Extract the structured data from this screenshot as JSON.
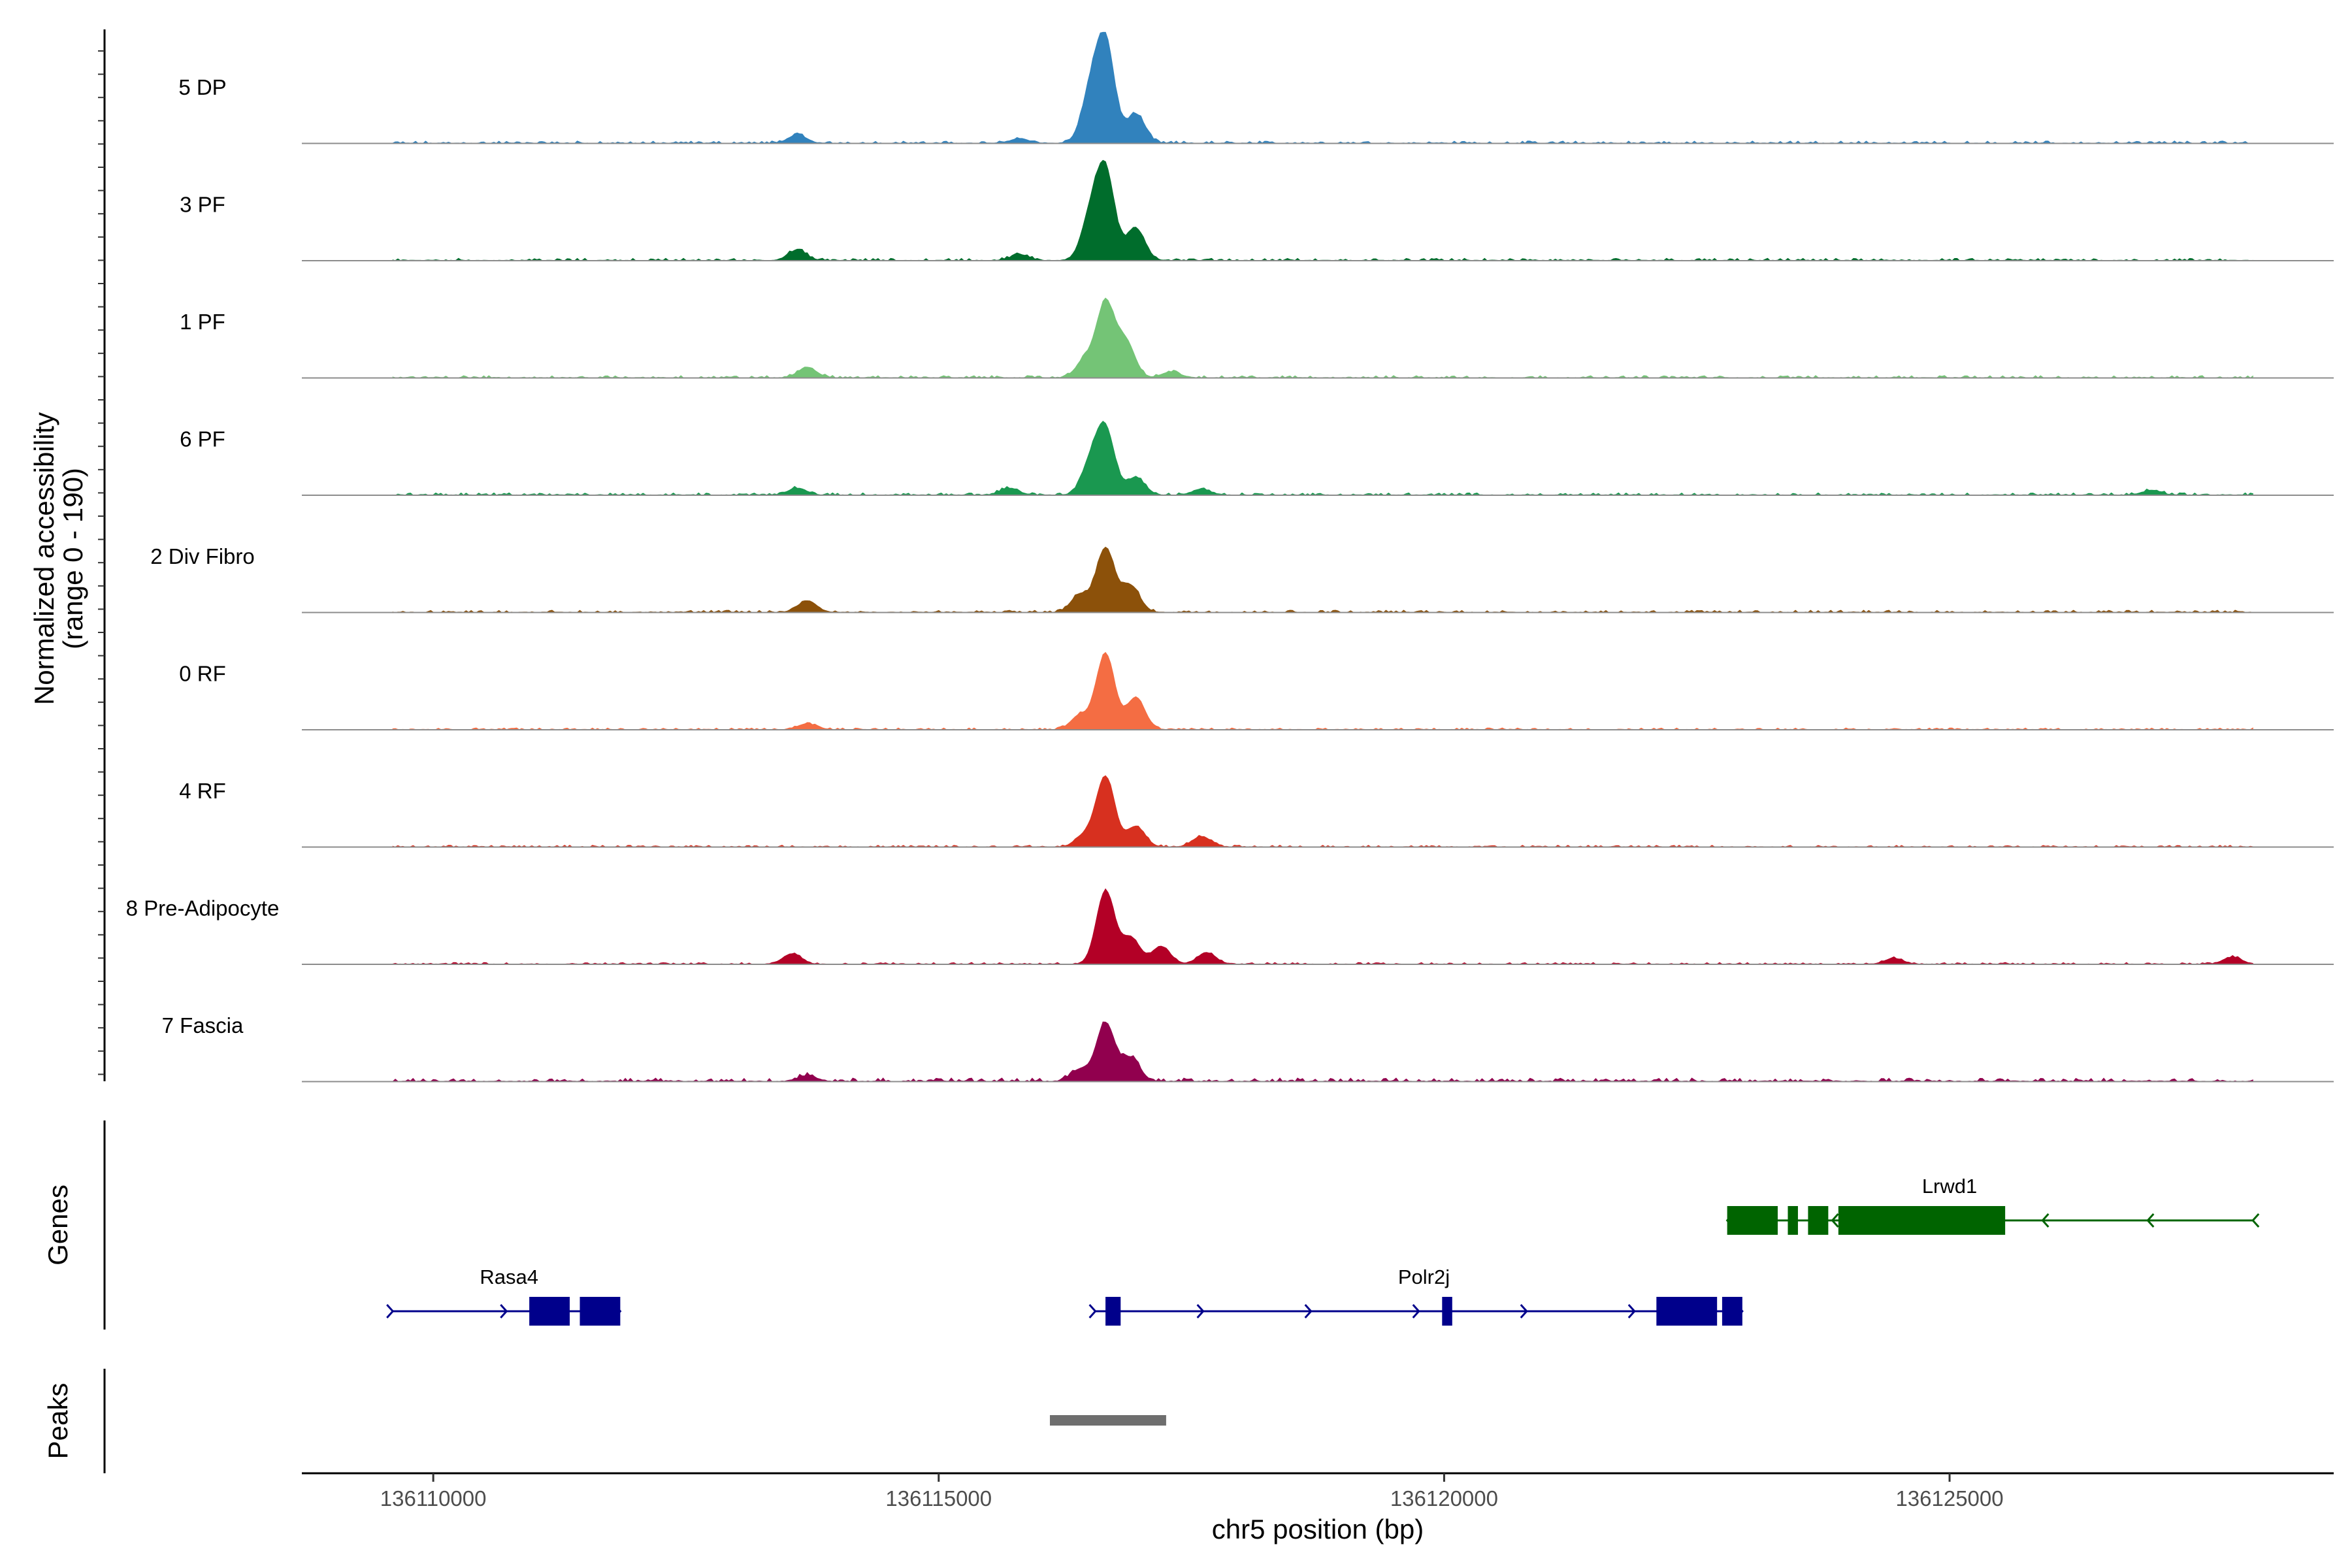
{
  "chart_data": {
    "type": "area",
    "title": "",
    "xlabel": "chr5 position (bp)",
    "ylabel_line1": "Normalized accessibility",
    "ylabel_line2": "(range 0 - 190)",
    "ylim": [
      0,
      190
    ],
    "xlim": [
      136108700,
      136128800
    ],
    "x_ticks": [
      136110000,
      136115000,
      136120000,
      136125000
    ],
    "x_tick_labels": [
      "136110000",
      "136115000",
      "136120000",
      "136125000"
    ],
    "tracks": [
      {
        "name": "5 DP",
        "color": "#3182bd",
        "peaks": [
          [
            136116650,
            170
          ],
          [
            136116500,
            80
          ],
          [
            136116950,
            50
          ],
          [
            136113600,
            14
          ],
          [
            136115800,
            8
          ]
        ],
        "baseline": 4
      },
      {
        "name": "3 PF",
        "color": "#006d2c",
        "peaks": [
          [
            136116650,
            150
          ],
          [
            136116500,
            70
          ],
          [
            136116950,
            55
          ],
          [
            136113600,
            18
          ],
          [
            136115800,
            10
          ]
        ],
        "baseline": 4
      },
      {
        "name": "1 PF",
        "color": "#74c476",
        "peaks": [
          [
            136116650,
            125
          ],
          [
            136116850,
            60
          ],
          [
            136116450,
            30
          ],
          [
            136113700,
            18
          ],
          [
            136117300,
            10
          ]
        ],
        "baseline": 4
      },
      {
        "name": "6 PF",
        "color": "#1a9850",
        "peaks": [
          [
            136116650,
            110
          ],
          [
            136116500,
            50
          ],
          [
            136116950,
            30
          ],
          [
            136113600,
            12
          ],
          [
            136115700,
            12
          ],
          [
            136117600,
            10
          ],
          [
            136127000,
            8
          ]
        ],
        "baseline": 4
      },
      {
        "name": "2 Div Fibro",
        "color": "#8c510a",
        "peaks": [
          [
            136116650,
            110
          ],
          [
            136116900,
            45
          ],
          [
            136116400,
            30
          ],
          [
            136113700,
            20
          ]
        ],
        "baseline": 4
      },
      {
        "name": "0 RF",
        "color": "#f46d43",
        "peaks": [
          [
            136116650,
            130
          ],
          [
            136116950,
            55
          ],
          [
            136116400,
            25
          ],
          [
            136113700,
            10
          ]
        ],
        "baseline": 3
      },
      {
        "name": "4 RF",
        "color": "#d7301f",
        "peaks": [
          [
            136116650,
            120
          ],
          [
            136116950,
            35
          ],
          [
            136116450,
            20
          ],
          [
            136117600,
            18
          ]
        ],
        "baseline": 3
      },
      {
        "name": "8 Pre-Adipocyte",
        "color": "#b30026",
        "peaks": [
          [
            136116650,
            125
          ],
          [
            136116900,
            45
          ],
          [
            136117200,
            30
          ],
          [
            136113550,
            18
          ],
          [
            136117650,
            20
          ],
          [
            136124450,
            10
          ],
          [
            136127800,
            12
          ]
        ],
        "baseline": 3
      },
      {
        "name": "7 Fascia",
        "color": "#91004e",
        "peaks": [
          [
            136116650,
            100
          ],
          [
            136116900,
            40
          ],
          [
            136116400,
            20
          ],
          [
            136113700,
            10
          ]
        ],
        "baseline": 6
      }
    ],
    "genes_track_label": "Genes",
    "peaks_track_label": "Peaks",
    "genes": [
      {
        "name": "Rasa4",
        "strand": "+",
        "start": 136109600,
        "end": 136111850,
        "exons": [
          [
            136110950,
            136111350
          ],
          [
            136111450,
            136111850
          ]
        ],
        "row": 2,
        "color": "#00008b"
      },
      {
        "name": "Polr2j",
        "strand": "+",
        "start": 136116550,
        "end": 136122950,
        "exons": [
          [
            136116650,
            136116800
          ],
          [
            136119980,
            136120080
          ],
          [
            136122100,
            136122700
          ],
          [
            136122750,
            136122950
          ]
        ],
        "row": 2,
        "color": "#00008b"
      },
      {
        "name": "Lrwd1",
        "strand": "-",
        "start": 136122800,
        "end": 136128000,
        "exons": [
          [
            136122800,
            136123300
          ],
          [
            136123400,
            136123500
          ],
          [
            136123600,
            136123800
          ],
          [
            136123900,
            136125550
          ]
        ],
        "row": 1,
        "color": "#006400"
      }
    ],
    "peak_regions": [
      [
        136116100,
        136117250
      ]
    ],
    "peak_color": "#6e6e6e"
  }
}
